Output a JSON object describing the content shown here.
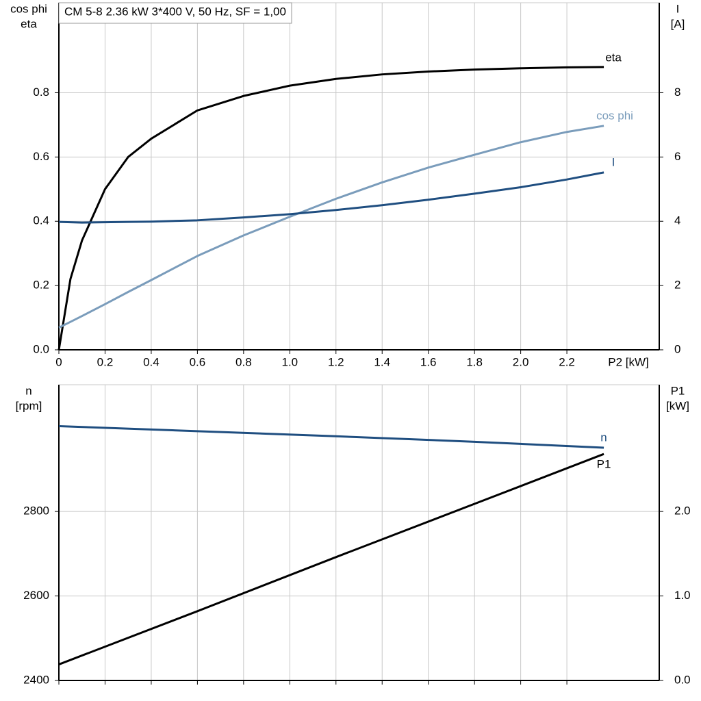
{
  "chart_data": [
    {
      "type": "line",
      "title": "CM 5-8   2.36 kW   3*400 V, 50 Hz, SF = 1,00",
      "ylabel": [
        "cos phi",
        "eta"
      ],
      "y2label": [
        "I",
        "[A]"
      ],
      "xlabel": "P2 [kW]",
      "x": [
        0,
        0.05,
        0.1,
        0.2,
        0.3,
        0.4,
        0.6,
        0.8,
        1.0,
        1.2,
        1.4,
        1.6,
        1.8,
        2.0,
        2.2,
        2.36
      ],
      "series": [
        {
          "name": "eta",
          "color": "#000000",
          "values": [
            0,
            0.22,
            0.34,
            0.5,
            0.6,
            0.657,
            0.745,
            0.79,
            0.822,
            0.843,
            0.857,
            0.866,
            0.872,
            0.876,
            0.879,
            0.88
          ]
        },
        {
          "name": "cos phi",
          "color": "#7a9cbb",
          "values": [
            0.069,
            0.087,
            0.105,
            0.142,
            0.18,
            0.217,
            0.292,
            0.356,
            0.414,
            0.47,
            0.521,
            0.567,
            0.607,
            0.646,
            0.678,
            0.697
          ]
        },
        {
          "name": "I",
          "color": "#1f4e80",
          "axis": "y2",
          "values": [
            3.98,
            3.97,
            3.96,
            3.97,
            3.98,
            3.99,
            4.03,
            4.12,
            4.22,
            4.35,
            4.5,
            4.67,
            4.86,
            5.06,
            5.3,
            5.52
          ]
        }
      ],
      "xlim": [
        0,
        2.6
      ],
      "xticks": [
        {
          "value": 0,
          "label": "0"
        },
        0.2,
        0.4,
        0.6,
        0.8,
        {
          "value": 1,
          "label": "1.0"
        },
        1.2,
        1.4,
        1.6,
        1.8,
        {
          "value": 2,
          "label": "2.0"
        },
        2.2
      ],
      "ylim": [
        0,
        1.08
      ],
      "yticks": [
        {
          "value": 0,
          "label": "0.0"
        },
        0.2,
        0.4,
        0.6,
        0.8
      ],
      "y2lim": [
        0,
        10.8
      ],
      "y2ticks": [
        0,
        2,
        4,
        6,
        8
      ],
      "xtick_labels": true,
      "grid": true
    },
    {
      "type": "line",
      "ylabel": [
        "n",
        "[rpm]"
      ],
      "y2label": [
        "P1",
        "[kW]"
      ],
      "x": [
        0,
        0.6,
        1.2,
        1.8,
        2.36
      ],
      "series": [
        {
          "name": "n",
          "color": "#1f4e80",
          "values": [
            3002,
            2990,
            2978,
            2965,
            2951
          ]
        },
        {
          "name": "P1",
          "color": "#000000",
          "axis": "y2",
          "values": [
            0.19,
            0.82,
            1.46,
            2.09,
            2.68
          ]
        }
      ],
      "xlim": [
        0,
        2.6
      ],
      "xticks": [
        0,
        0.2,
        0.4,
        0.6,
        0.8,
        1,
        1.2,
        1.4,
        1.6,
        1.8,
        2,
        2.2
      ],
      "xtick_labels": false,
      "ylim": [
        2400,
        3100
      ],
      "yticks": [
        2400,
        2600,
        2800
      ],
      "y2lim": [
        0,
        3.5
      ],
      "y2ticks": [
        {
          "value": 0,
          "label": "0.0"
        },
        {
          "value": 1,
          "label": "1.0"
        },
        {
          "value": 2,
          "label": "2.0"
        }
      ],
      "grid": true
    }
  ]
}
